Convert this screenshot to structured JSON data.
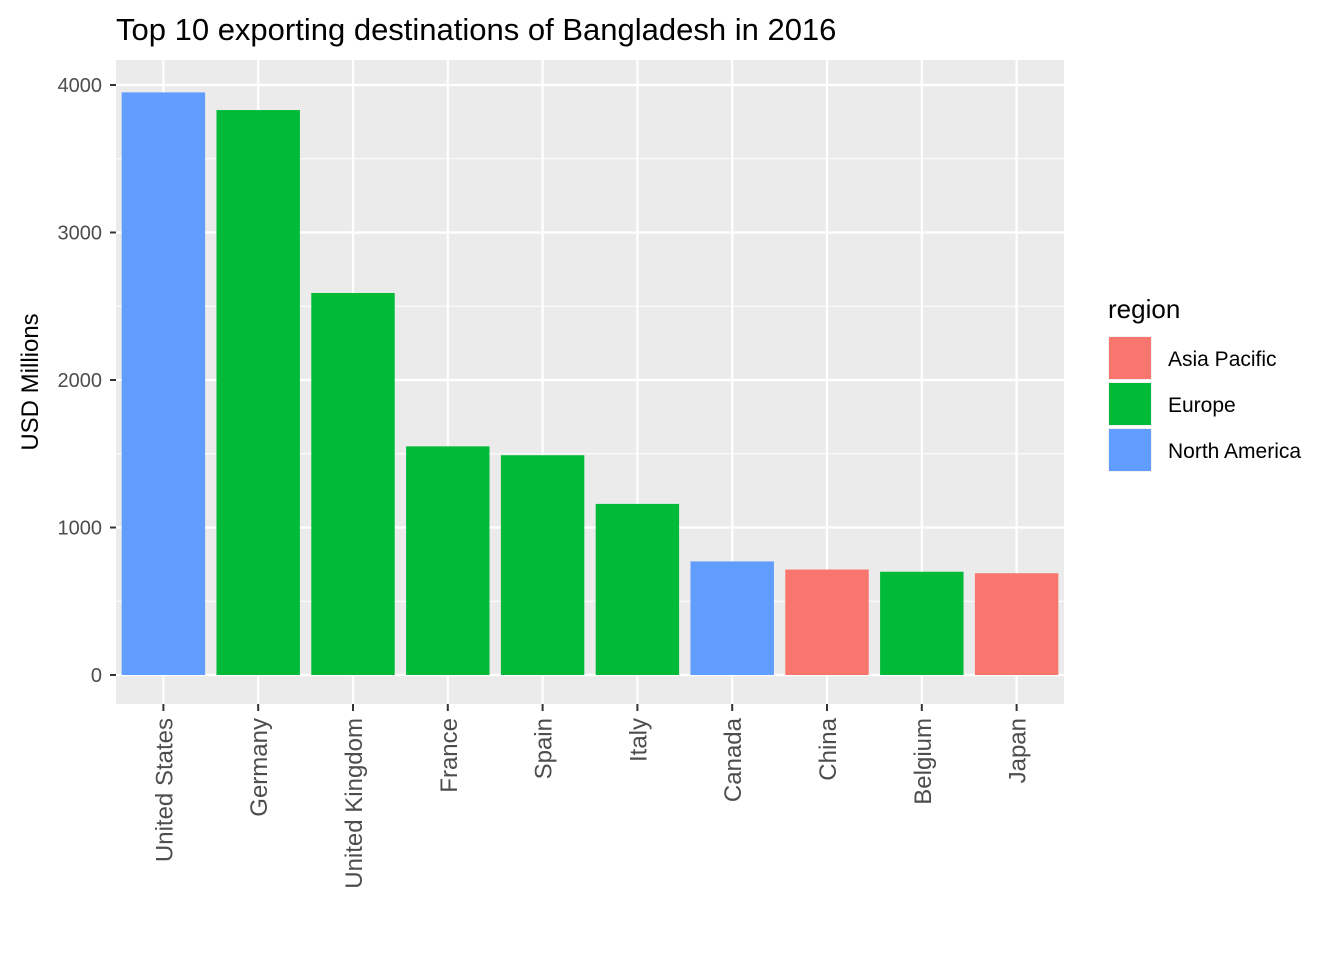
{
  "chart_data": {
    "type": "bar",
    "title": "Top 10 exporting destinations of Bangladesh in 2016",
    "xlabel": "",
    "ylabel": "USD Millions",
    "ylim": [
      0,
      4000
    ],
    "yticks": [
      "0",
      "1000",
      "2000",
      "3000",
      "4000"
    ],
    "grid": true,
    "categories": [
      "United States",
      "Germany",
      "United Kingdom",
      "France",
      "Spain",
      "Italy",
      "Canada",
      "China",
      "Belgium",
      "Japan"
    ],
    "values": [
      3950,
      3830,
      2590,
      1550,
      1490,
      1160,
      770,
      715,
      700,
      690
    ],
    "regions": [
      "North America",
      "Europe",
      "Europe",
      "Europe",
      "Europe",
      "Europe",
      "North America",
      "Asia Pacific",
      "Europe",
      "Asia Pacific"
    ],
    "legend": {
      "title": "region",
      "position": "right",
      "entries": [
        {
          "label": "Asia Pacific",
          "color": "#F8766D"
        },
        {
          "label": "Europe",
          "color": "#00BA38"
        },
        {
          "label": "North America",
          "color": "#619CFF"
        }
      ]
    },
    "colors": {
      "panel_background": "#EBEBEB",
      "grid_line": "#FFFFFF",
      "tick_text": "#4D4D4D",
      "tick_mark": "#333333"
    }
  }
}
